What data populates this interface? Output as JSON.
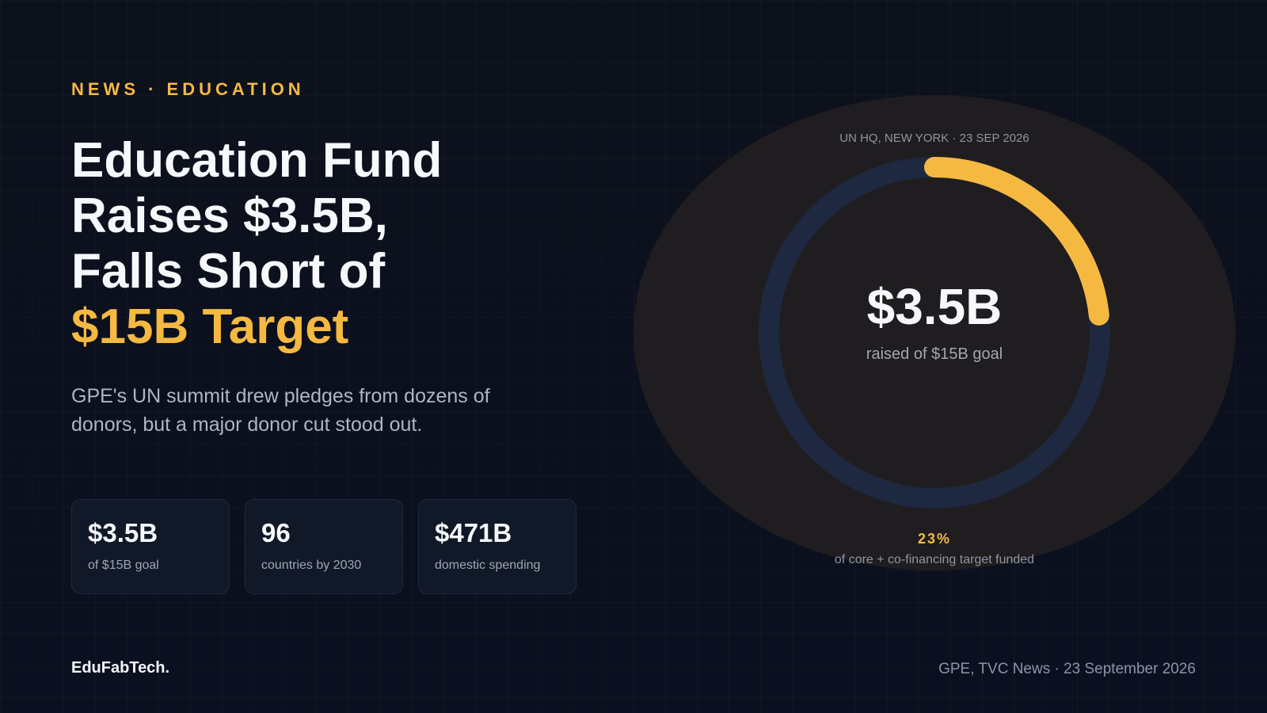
{
  "kicker": "NEWS · EDUCATION",
  "headline": {
    "line1": "Education Fund",
    "line2": "Raises $3.5B,",
    "line3": "Falls Short of",
    "accent": "$15B Target"
  },
  "dek": "GPE's UN summit drew pledges from dozens of donors, but a major donor cut stood out.",
  "stats": [
    {
      "value": "$3.5B",
      "label": "of $15B goal"
    },
    {
      "value": "96",
      "label": "countries by 2030"
    },
    {
      "value": "$471B",
      "label": "domestic spending"
    }
  ],
  "brand": "EduFabTech.",
  "source": "GPE, TVC News · 23 September 2026",
  "gauge": {
    "location": "UN HQ, NEW YORK · 23 SEP 2026",
    "value": "$3.5B",
    "label": "raised of $15B goal",
    "percent_text": "23%",
    "percent_label": "of core + co-financing target funded",
    "fraction": 0.233
  },
  "colors": {
    "accent": "#f5b942",
    "track": "#1e2840",
    "background": "#0a0f1b"
  }
}
